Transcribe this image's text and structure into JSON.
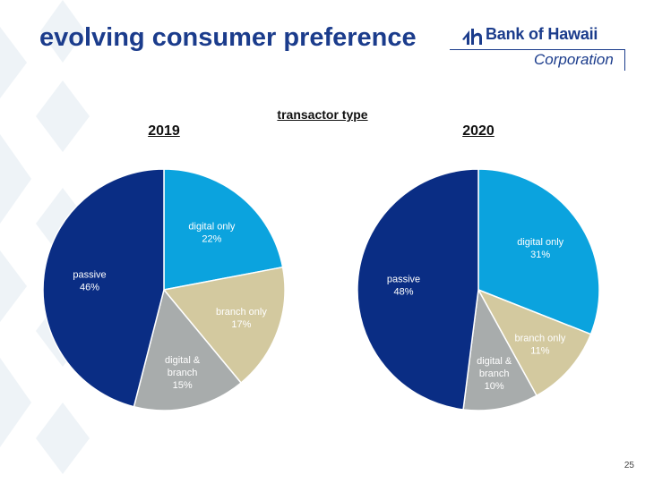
{
  "slide": {
    "title": "evolving consumer preference",
    "page_number": "25"
  },
  "logo": {
    "name": "Bank of Hawaii",
    "sub": "Corporation"
  },
  "colors": {
    "title": "#1b3c8c",
    "digital_only": "#0ba3de",
    "branch_only": "#d3c99f",
    "digital_and_branch": "#a8acac",
    "passive": "#0a2d84",
    "pattern": "#eef3f7"
  },
  "chart_data": [
    {
      "type": "pie",
      "heading": "transactor type",
      "title": "2019",
      "slices": [
        {
          "label": "digital only",
          "value": 22,
          "text": "22%",
          "color": "#0ba3de"
        },
        {
          "label": "branch only",
          "value": 17,
          "text": "17%",
          "color": "#d3c99f"
        },
        {
          "label": "digital & branch",
          "value": 15,
          "text": "15%",
          "color": "#a8acac"
        },
        {
          "label": "passive",
          "value": 46,
          "text": "46%",
          "color": "#0a2d84"
        }
      ]
    },
    {
      "type": "pie",
      "title": "2020",
      "slices": [
        {
          "label": "digital only",
          "value": 31,
          "text": "31%",
          "color": "#0ba3de"
        },
        {
          "label": "branch only",
          "value": 11,
          "text": "11%",
          "color": "#d3c99f"
        },
        {
          "label": "digital & branch",
          "value": 10,
          "text": "10%",
          "color": "#a8acac"
        },
        {
          "label": "passive",
          "value": 48,
          "text": "48%",
          "color": "#0a2d84"
        }
      ]
    }
  ]
}
